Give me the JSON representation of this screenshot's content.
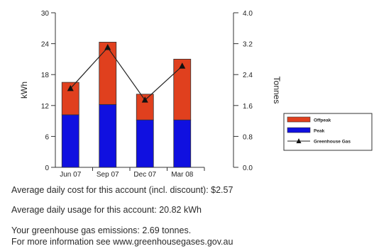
{
  "chart_data": {
    "type": "bar",
    "categories": [
      "Jun 07",
      "Sep 07",
      "Dec 07",
      "Mar 08"
    ],
    "series": [
      {
        "name": "Peak",
        "values": [
          10.2,
          12.2,
          9.2,
          9.2
        ],
        "color": "#1010e0"
      },
      {
        "name": "Offpeak",
        "values": [
          6.3,
          12.1,
          5.0,
          11.8
        ],
        "color": "#e0401e"
      }
    ],
    "line_series": {
      "name": "Greenhouse Gas",
      "values": [
        2.04,
        3.1,
        1.74,
        2.62
      ],
      "axis": "right"
    },
    "ylabel": "kWh",
    "y2label": "Tonnes",
    "ylim": [
      0,
      30
    ],
    "y2lim": [
      0,
      4.0
    ],
    "yticks": [
      "0",
      "6",
      "12",
      "18",
      "24",
      "30"
    ],
    "y2ticks": [
      "0.0",
      "0.8",
      "1.6",
      "2.4",
      "3.2",
      "4.0"
    ],
    "legend_position": "right"
  },
  "summary": {
    "cost": "Average daily cost for this account (incl. discount): $2.57",
    "usage": "Average daily usage for this account: 20.82 kWh",
    "emissions": "Your greenhouse gas emissions: 2.69 tonnes.",
    "info": "For more information see www.greenhousegases.gov.au"
  }
}
